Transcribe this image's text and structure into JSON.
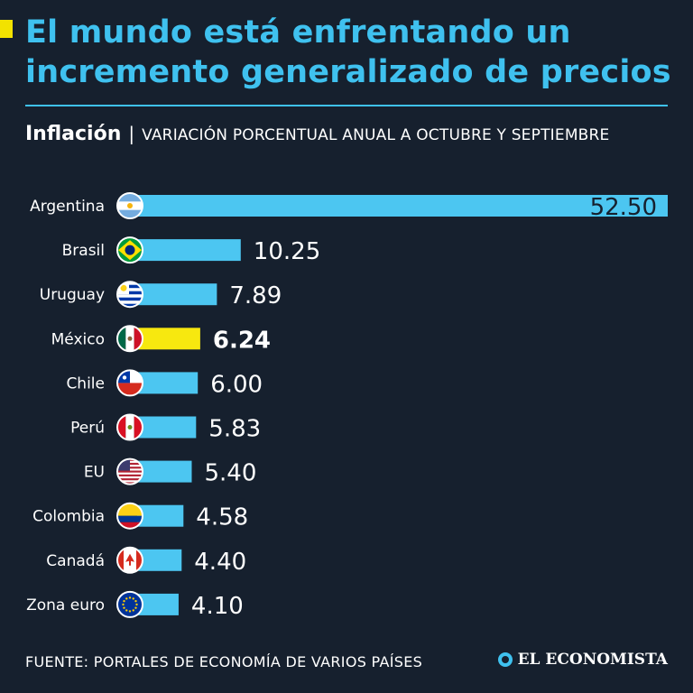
{
  "title": "El mundo está enfrentando un incremento generalizado de precios",
  "subtitle": {
    "main": "Inflación",
    "separator": "|",
    "description": "VARIACIÓN PORCENTUAL ANUAL A OCTUBRE Y SEPTIEMBRE"
  },
  "colors": {
    "background": "#16202e",
    "bar": "#4cc6f1",
    "highlight_bar": "#f7e80f",
    "title": "#3fc1ef",
    "accent": "#f2e200"
  },
  "chart_data": {
    "type": "bar",
    "orientation": "horizontal",
    "categories": [
      "Argentina",
      "Brasil",
      "Uruguay",
      "México",
      "Chile",
      "Perú",
      "EU",
      "Colombia",
      "Canadá",
      "Zona euro"
    ],
    "values": [
      52.5,
      10.25,
      7.89,
      6.24,
      6.0,
      5.83,
      5.4,
      4.58,
      4.4,
      4.1
    ],
    "labels": [
      "52.50",
      "10.25",
      "7.89",
      "6.24",
      "6.00",
      "5.83",
      "5.40",
      "4.58",
      "4.40",
      "4.10"
    ],
    "highlight": "México",
    "flag_icons": [
      "argentina-flag-icon",
      "brazil-flag-icon",
      "uruguay-flag-icon",
      "mexico-flag-icon",
      "chile-flag-icon",
      "peru-flag-icon",
      "usa-flag-icon",
      "colombia-flag-icon",
      "canada-flag-icon",
      "eu-flag-icon"
    ],
    "xlim": [
      0,
      52.5
    ],
    "title": "Inflación",
    "xlabel": "",
    "ylabel": ""
  },
  "footer": {
    "source": "FUENTE: PORTALES DE ECONOMÍA DE VARIOS PAÍSES",
    "brand": "EL ECONOMISTA"
  }
}
